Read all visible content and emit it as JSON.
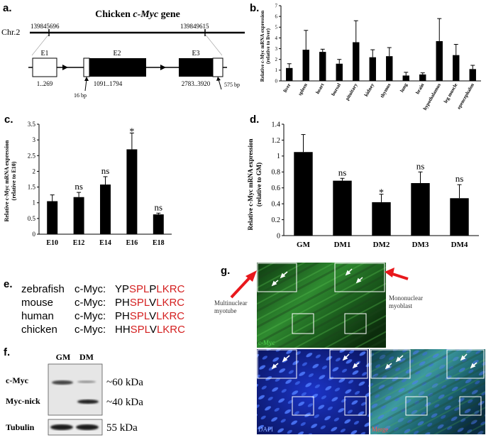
{
  "panels": {
    "a": {
      "label": "a.",
      "title_prefix": "Chicken ",
      "title_gene": "c-Myc",
      "title_suffix": " gene",
      "chromosome": "Chr.2",
      "coord_start": "139845696",
      "coord_end": "139849615",
      "exons": [
        "E1",
        "E2",
        "E3"
      ],
      "ranges": [
        "1..269",
        "1091..1794",
        "2783..3920"
      ],
      "utr_left": "16 bp",
      "utr_right": "575 bp"
    },
    "b": {
      "label": "b.",
      "ylabel_line1": "Relative c-Myc mRNA expression",
      "ylabel_line2": "(relative to liver)"
    },
    "c": {
      "label": "c.",
      "ylabel_line1": "Relative c-Myc mRNA expression",
      "ylabel_line2": "(relative to E10)"
    },
    "d": {
      "label": "d.",
      "ylabel_line1": "Relative c-Myc mRNA expression",
      "ylabel_line2": "(relative to GM)"
    },
    "e": {
      "label": "e.",
      "rows": [
        {
          "species": "zebrafish",
          "gene": "c-Myc:",
          "black1": "YP",
          "red1": "SPL",
          "black2": "P",
          "red2": "LKRC"
        },
        {
          "species": "mouse",
          "gene": "c-Myc:",
          "black1": "PH",
          "red1": "SPL",
          "black2": "V",
          "red2": "LKRC"
        },
        {
          "species": "human",
          "gene": "c-Myc:",
          "black1": "PH",
          "red1": "SPL",
          "black2": "V",
          "red2": "LKRC"
        },
        {
          "species": "chicken",
          "gene": "c-Myc:",
          "black1": "HH",
          "red1": "SPL",
          "black2": "V",
          "red2": "LKRC"
        }
      ]
    },
    "f": {
      "label": "f.",
      "lanes": [
        "GM",
        "DM"
      ],
      "bands": [
        "c-Myc",
        "Myc-nick",
        "Tubulin"
      ],
      "sizes": [
        "~60 kDa",
        "~40 kDa",
        "55 kDa"
      ]
    },
    "g": {
      "label": "g.",
      "annotation_left": "Multinuclear myotube",
      "annotation_right": "Mononuclear myoblast",
      "image_labels": [
        "c-Myc",
        "DAPI",
        "Merge"
      ]
    }
  },
  "chart_data": [
    {
      "type": "bar",
      "panel": "b",
      "categories": [
        "liver",
        "spleen",
        "heart",
        "bursal",
        "pituitary",
        "kidney",
        "thymus",
        "lung",
        "brain",
        "hypothalamus",
        "leg muscle",
        "epencephalon"
      ],
      "values": [
        1.2,
        2.9,
        2.7,
        1.6,
        3.6,
        2.2,
        2.3,
        0.5,
        0.6,
        3.7,
        2.4,
        1.1
      ],
      "errors": [
        0.4,
        1.8,
        0.25,
        0.4,
        2.0,
        0.7,
        0.8,
        0.3,
        0.15,
        2.1,
        1.0,
        0.35
      ],
      "ylim": [
        0,
        7
      ],
      "yticks": [
        "0",
        "1",
        "2",
        "3",
        "4",
        "5",
        "6",
        "7"
      ]
    },
    {
      "type": "bar",
      "panel": "c",
      "categories": [
        "E10",
        "E12",
        "E14",
        "E16",
        "E18"
      ],
      "values": [
        1.05,
        1.18,
        1.58,
        2.7,
        0.63
      ],
      "errors": [
        0.2,
        0.15,
        0.25,
        0.52,
        0.04
      ],
      "annotations": [
        "",
        "ns",
        "ns",
        "*",
        "ns"
      ],
      "ylim": [
        0,
        3.5
      ],
      "yticks": [
        "0",
        "0.5",
        "1",
        "1.5",
        "2",
        "2.5",
        "3",
        "3.5"
      ]
    },
    {
      "type": "bar",
      "panel": "d",
      "categories": [
        "GM",
        "DM1",
        "DM2",
        "DM3",
        "DM4"
      ],
      "values": [
        1.05,
        0.69,
        0.42,
        0.66,
        0.47
      ],
      "errors": [
        0.22,
        0.03,
        0.1,
        0.14,
        0.17
      ],
      "annotations": [
        "",
        "ns",
        "*",
        "ns",
        "ns"
      ],
      "ylim": [
        0,
        1.4
      ],
      "yticks": [
        "0",
        "0.2",
        "0.4",
        "0.6",
        "0.8",
        "1",
        "1.2",
        "1.4"
      ]
    }
  ]
}
